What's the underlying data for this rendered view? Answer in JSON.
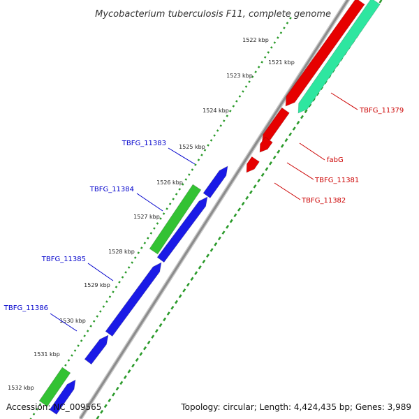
{
  "title": "Mycobacterium tuberculosis F11, complete genome",
  "footer": {
    "accession": "Accession: NC_009565",
    "summary": "Topology: circular; Length: 4,424,435 bp; Genes: 3,989"
  },
  "colors": {
    "backbone": "#8c8c8c",
    "forward_cds": "#1a1ae6",
    "forward_rna": "#33c233",
    "reverse_cds": "#e60000",
    "reverse_rna": "#2ee6a0",
    "tick_dots": "#2a9a2a",
    "forward_label": "#0000cc",
    "reverse_label": "#cc0000"
  },
  "ticks": [
    "1521 kbp",
    "1522 kbp",
    "1523 kbp",
    "1524 kbp",
    "1525 kbp",
    "1526 kbp",
    "1527 kbp",
    "1528 kbp",
    "1529 kbp",
    "1530 kbp",
    "1531 kbp",
    "1532 kbp"
  ],
  "labels": [
    {
      "text": "TBFG_11379",
      "strand": "reverse"
    },
    {
      "text": "fabG",
      "strand": "reverse"
    },
    {
      "text": "TBFG_11381",
      "strand": "reverse"
    },
    {
      "text": "TBFG_11382",
      "strand": "reverse"
    },
    {
      "text": "TBFG_11383",
      "strand": "forward"
    },
    {
      "text": "TBFG_11384",
      "strand": "forward"
    },
    {
      "text": "TBFG_11385",
      "strand": "forward"
    },
    {
      "text": "TBFG_11386",
      "strand": "forward"
    }
  ]
}
